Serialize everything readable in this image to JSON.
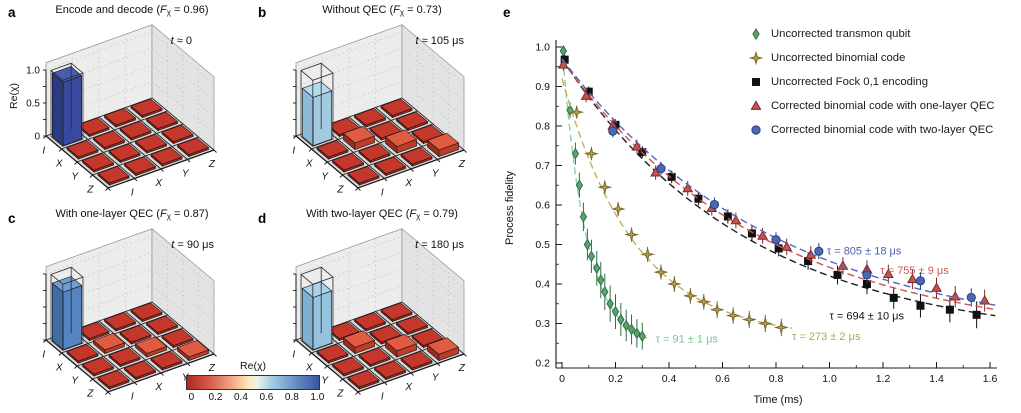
{
  "figure": {
    "panel_e": {
      "letter": "e"
    },
    "panels_3d": [
      {
        "letter": "a",
        "title_parts": {
          "pre": "Encode and decode (",
          "f": "F",
          "sub": "χ",
          "eq": " = ",
          "val": "0.96",
          "post": ")"
        },
        "time": {
          "sym": "t",
          "rel": " ≈ ",
          "val": "0"
        },
        "ylabel": "Re(χ)",
        "zticks": [
          "0",
          "0.5",
          "1.0"
        ],
        "show_z_labels": true,
        "bar_colors": {
          "top": "#4a5cb2",
          "left": "#2b3a87",
          "right": "#39499f"
        }
      },
      {
        "letter": "b",
        "title_parts": {
          "pre": "Without QEC (",
          "f": "F",
          "sub": "χ",
          "eq": " = ",
          "val": "0.73",
          "post": ")"
        },
        "time": {
          "sym": "t",
          "rel": " ≈ ",
          "val": "105 μs"
        },
        "zticks": [
          "0",
          "0.5",
          "1.0"
        ],
        "show_z_labels": false,
        "bar_colors": {
          "top": "#b7d9ec",
          "left": "#8cbad8",
          "right": "#a2cbe2"
        }
      },
      {
        "letter": "c",
        "title_parts": {
          "pre": "With one-layer QEC (",
          "f": "F",
          "sub": "χ",
          "eq": " = ",
          "val": "0.87",
          "post": ")"
        },
        "time": {
          "sym": "t",
          "rel": " = ",
          "val": "90 μs"
        },
        "zticks": [
          "0",
          "0.5",
          "1.0"
        ],
        "show_z_labels": false,
        "bar_colors": {
          "top": "#6f9ed0",
          "left": "#3f6ba6",
          "right": "#5585c0"
        }
      },
      {
        "letter": "d",
        "title_parts": {
          "pre": "With two-layer QEC (",
          "f": "F",
          "sub": "χ",
          "eq": " = ",
          "val": "0.79",
          "post": ")"
        },
        "time": {
          "sym": "t",
          "rel": " = ",
          "val": "180 μs"
        },
        "zticks": [
          "0",
          "0.5",
          "1.0"
        ],
        "show_z_labels": false,
        "bar_colors": {
          "top": "#abd2e8",
          "left": "#7fb0d2",
          "right": "#95c2dd"
        }
      }
    ],
    "matrix_style": {
      "tile": {
        "top": "#c5372a",
        "left": "#8c2018",
        "right": "#a6281e"
      },
      "tile_raised": {
        "top": "#e25a41",
        "left": "#9c2c1d",
        "right": "#bc3c28"
      },
      "wall_left": "#ececec",
      "wall_right": "#e3e3e3",
      "floor": "#d9d9d9"
    },
    "colorbar": {
      "label": "Re(χ)",
      "ticks": [
        "0",
        "0.2",
        "0.4",
        "0.6",
        "0.8",
        "1.0"
      ],
      "stops": [
        {
          "c": "#b2251f",
          "p": 0
        },
        {
          "c": "#d6604d",
          "p": 18
        },
        {
          "c": "#f4a582",
          "p": 34
        },
        {
          "c": "#fdeabf",
          "p": 47
        },
        {
          "c": "#edf2ec",
          "p": 53
        },
        {
          "c": "#abd0e4",
          "p": 63
        },
        {
          "c": "#6b97c7",
          "p": 80
        },
        {
          "c": "#3a53a4",
          "p": 100
        }
      ]
    }
  },
  "chart_data": [
    {
      "type": "bar3d",
      "name": "encode-and-decode",
      "fidelity": 0.96,
      "zlabel": "Re(χ)",
      "zlim": [
        0,
        1
      ],
      "axis_labels_row": [
        "I",
        "X",
        "Y",
        "Z"
      ],
      "axis_labels_col": [
        "I",
        "X",
        "Y",
        "Z"
      ],
      "matrix": [
        [
          0.96,
          0.03,
          0.03,
          0.03
        ],
        [
          0.03,
          0.03,
          0.03,
          0.03
        ],
        [
          0.03,
          0.03,
          0.03,
          0.03
        ],
        [
          0.03,
          0.03,
          0.03,
          0.03
        ]
      ]
    },
    {
      "type": "bar3d",
      "name": "without-qec",
      "fidelity": 0.73,
      "zlabel": "Re(χ)",
      "zlim": [
        0,
        1
      ],
      "axis_labels_row": [
        "I",
        "X",
        "Y",
        "Z"
      ],
      "axis_labels_col": [
        "I",
        "X",
        "Y",
        "Z"
      ],
      "matrix": [
        [
          0.73,
          0.03,
          0.03,
          0.03
        ],
        [
          0.03,
          0.1,
          0.03,
          0.03
        ],
        [
          0.03,
          0.03,
          0.1,
          0.03
        ],
        [
          0.03,
          0.03,
          0.03,
          0.1
        ]
      ]
    },
    {
      "type": "bar3d",
      "name": "one-layer-qec",
      "fidelity": 0.87,
      "zlabel": "Re(χ)",
      "zlim": [
        0,
        1
      ],
      "axis_labels_row": [
        "I",
        "X",
        "Y",
        "Z"
      ],
      "axis_labels_col": [
        "I",
        "X",
        "Y",
        "Z"
      ],
      "matrix": [
        [
          0.87,
          0.03,
          0.03,
          0.03
        ],
        [
          0.03,
          0.055,
          0.03,
          0.03
        ],
        [
          0.03,
          0.03,
          0.055,
          0.03
        ],
        [
          0.03,
          0.03,
          0.03,
          0.055
        ]
      ]
    },
    {
      "type": "bar3d",
      "name": "two-layer-qec",
      "fidelity": 0.79,
      "zlabel": "Re(χ)",
      "zlim": [
        0,
        1
      ],
      "axis_labels_row": [
        "I",
        "X",
        "Y",
        "Z"
      ],
      "axis_labels_col": [
        "I",
        "X",
        "Y",
        "Z"
      ],
      "matrix": [
        [
          0.79,
          0.03,
          0.03,
          0.03
        ],
        [
          0.03,
          0.095,
          0.03,
          0.03
        ],
        [
          0.03,
          0.03,
          0.095,
          0.03
        ],
        [
          0.03,
          0.03,
          0.03,
          0.095
        ]
      ]
    },
    {
      "type": "scatter-line",
      "xlabel": "Time (ms)",
      "ylabel": "Process fidelity",
      "xlim": [
        0,
        1.6
      ],
      "ylim": [
        0.2,
        1.0
      ],
      "xticks": [
        "0",
        "0.2",
        "0.4",
        "0.6",
        "0.8",
        "1.0",
        "1.2",
        "1.4",
        "1.6"
      ],
      "yticks": [
        "0.2",
        "0.3",
        "0.4",
        "0.5",
        "0.6",
        "0.7",
        "0.8",
        "0.9",
        "1.0"
      ],
      "legend_position": "upper right",
      "grid": false,
      "series": [
        {
          "label": "Uncorrected transmon qubit",
          "marker": "diamond",
          "fill": "#5aa46c",
          "edge": "#2f6e47",
          "line_color": "#8fd0a5",
          "fit": {
            "c": 0.24,
            "a": 0.76,
            "tau_ms": 0.091,
            "t_max": 0.33
          },
          "tau_label": {
            "text": "τ = 91 ± 1 μs",
            "x": 0.35,
            "y": 0.262,
            "color": "#79c491"
          },
          "points": [
            [
              0.005,
              0.99
            ],
            [
              0.03,
              0.84
            ],
            [
              0.05,
              0.73
            ],
            [
              0.065,
              0.65
            ],
            [
              0.08,
              0.57
            ],
            [
              0.095,
              0.5
            ],
            [
              0.11,
              0.47
            ],
            [
              0.13,
              0.44
            ],
            [
              0.145,
              0.41
            ],
            [
              0.16,
              0.38
            ],
            [
              0.18,
              0.35
            ],
            [
              0.2,
              0.33
            ],
            [
              0.22,
              0.31
            ],
            [
              0.24,
              0.295
            ],
            [
              0.26,
              0.285
            ],
            [
              0.28,
              0.275
            ],
            [
              0.3,
              0.268
            ]
          ],
          "err": [
            0.012,
            0.02,
            0.028,
            0.032,
            0.036,
            0.04,
            0.042,
            0.044,
            0.046,
            0.046,
            0.046,
            0.044,
            0.042,
            0.04,
            0.038,
            0.036,
            0.034
          ]
        },
        {
          "label": "Uncorrected binomial code",
          "marker": "star4",
          "fill": "#b3a04f",
          "edge": "#77682a",
          "line_color": "#c8ad55",
          "fit": {
            "c": 0.26,
            "a": 0.66,
            "tau_ms": 0.273,
            "t_max": 0.86
          },
          "tau_label": {
            "text": "τ = 273 ± 2 μs",
            "x": 0.86,
            "y": 0.268,
            "color": "#b9a44c"
          },
          "points": [
            [
              0.055,
              0.835
            ],
            [
              0.11,
              0.73
            ],
            [
              0.16,
              0.645
            ],
            [
              0.21,
              0.59
            ],
            [
              0.26,
              0.525
            ],
            [
              0.32,
              0.475
            ],
            [
              0.37,
              0.43
            ],
            [
              0.42,
              0.4
            ],
            [
              0.48,
              0.37
            ],
            [
              0.53,
              0.355
            ],
            [
              0.58,
              0.335
            ],
            [
              0.64,
              0.32
            ],
            [
              0.7,
              0.31
            ],
            [
              0.76,
              0.3
            ],
            [
              0.82,
              0.29
            ]
          ],
          "err": [
            0.015,
            0.016,
            0.017,
            0.018,
            0.018,
            0.019,
            0.019,
            0.02,
            0.02,
            0.02,
            0.021,
            0.021,
            0.022,
            0.022,
            0.022
          ]
        },
        {
          "label": "Uncorrected Fock 0,1 encoding",
          "marker": "square",
          "fill": "#111111",
          "edge": "#111111",
          "line_color": "#222222",
          "fit": {
            "c": 0.25,
            "a": 0.72,
            "tau_ms": 0.694,
            "t_max": 1.62
          },
          "tau_label": {
            "text": "τ = 694 ± 10 μs",
            "x": 1.0,
            "y": 0.32,
            "color": "#111111"
          },
          "points": [
            [
              0.01,
              0.968
            ],
            [
              0.1,
              0.887
            ],
            [
              0.2,
              0.803
            ],
            [
              0.3,
              0.734
            ],
            [
              0.41,
              0.671
            ],
            [
              0.51,
              0.616
            ],
            [
              0.62,
              0.571
            ],
            [
              0.71,
              0.528
            ],
            [
              0.81,
              0.49
            ],
            [
              0.92,
              0.458
            ],
            [
              1.03,
              0.423
            ],
            [
              1.14,
              0.4
            ],
            [
              1.24,
              0.365
            ],
            [
              1.34,
              0.345
            ],
            [
              1.45,
              0.335
            ],
            [
              1.55,
              0.322
            ]
          ],
          "err": [
            0.012,
            0.013,
            0.014,
            0.015,
            0.016,
            0.017,
            0.018,
            0.019,
            0.02,
            0.022,
            0.024,
            0.026,
            0.028,
            0.03,
            0.032,
            0.034
          ]
        },
        {
          "label": "Corrected binomial code with one-layer QEC",
          "marker": "triangle",
          "fill": "#c4524e",
          "edge": "#7e2a28",
          "line_color": "#cc534e",
          "fit": {
            "c": 0.252,
            "a": 0.715,
            "tau_ms": 0.755,
            "t_max": 1.62
          },
          "tau_label": {
            "text": "τ = 755 ± 9 μs",
            "x": 1.19,
            "y": 0.435,
            "color": "#cd5750"
          },
          "points": [
            [
              0.005,
              0.955
            ],
            [
              0.09,
              0.876
            ],
            [
              0.19,
              0.801
            ],
            [
              0.28,
              0.748
            ],
            [
              0.35,
              0.682
            ],
            [
              0.47,
              0.642
            ],
            [
              0.56,
              0.592
            ],
            [
              0.65,
              0.561
            ],
            [
              0.75,
              0.522
            ],
            [
              0.84,
              0.494
            ],
            [
              0.93,
              0.474
            ],
            [
              1.05,
              0.446
            ],
            [
              1.14,
              0.437
            ],
            [
              1.22,
              0.425
            ],
            [
              1.31,
              0.412
            ],
            [
              1.4,
              0.39
            ],
            [
              1.47,
              0.368
            ],
            [
              1.58,
              0.358
            ]
          ],
          "err": [
            0.015,
            0.016,
            0.017,
            0.018,
            0.018,
            0.019,
            0.019,
            0.02,
            0.02,
            0.021,
            0.022,
            0.022,
            0.023,
            0.024,
            0.025,
            0.026,
            0.027,
            0.028
          ]
        },
        {
          "label": "Corrected binomial code with two-layer QEC",
          "marker": "circle",
          "fill": "#4c68ae",
          "edge": "#263f80",
          "line_color": "#5566b8",
          "fit": {
            "c": 0.25,
            "a": 0.72,
            "tau_ms": 0.805,
            "t_max": 1.62
          },
          "tau_label": {
            "text": "τ = 805 ± 18 μs",
            "x": 0.99,
            "y": 0.485,
            "color": "#4a5fae"
          },
          "points": [
            [
              0.19,
              0.787
            ],
            [
              0.37,
              0.692
            ],
            [
              0.57,
              0.601
            ],
            [
              0.8,
              0.512
            ],
            [
              0.96,
              0.483
            ],
            [
              1.14,
              0.423
            ],
            [
              1.34,
              0.408
            ],
            [
              1.53,
              0.366
            ]
          ],
          "err": [
            0.016,
            0.017,
            0.018,
            0.019,
            0.02,
            0.021,
            0.022,
            0.023
          ]
        }
      ]
    }
  ]
}
